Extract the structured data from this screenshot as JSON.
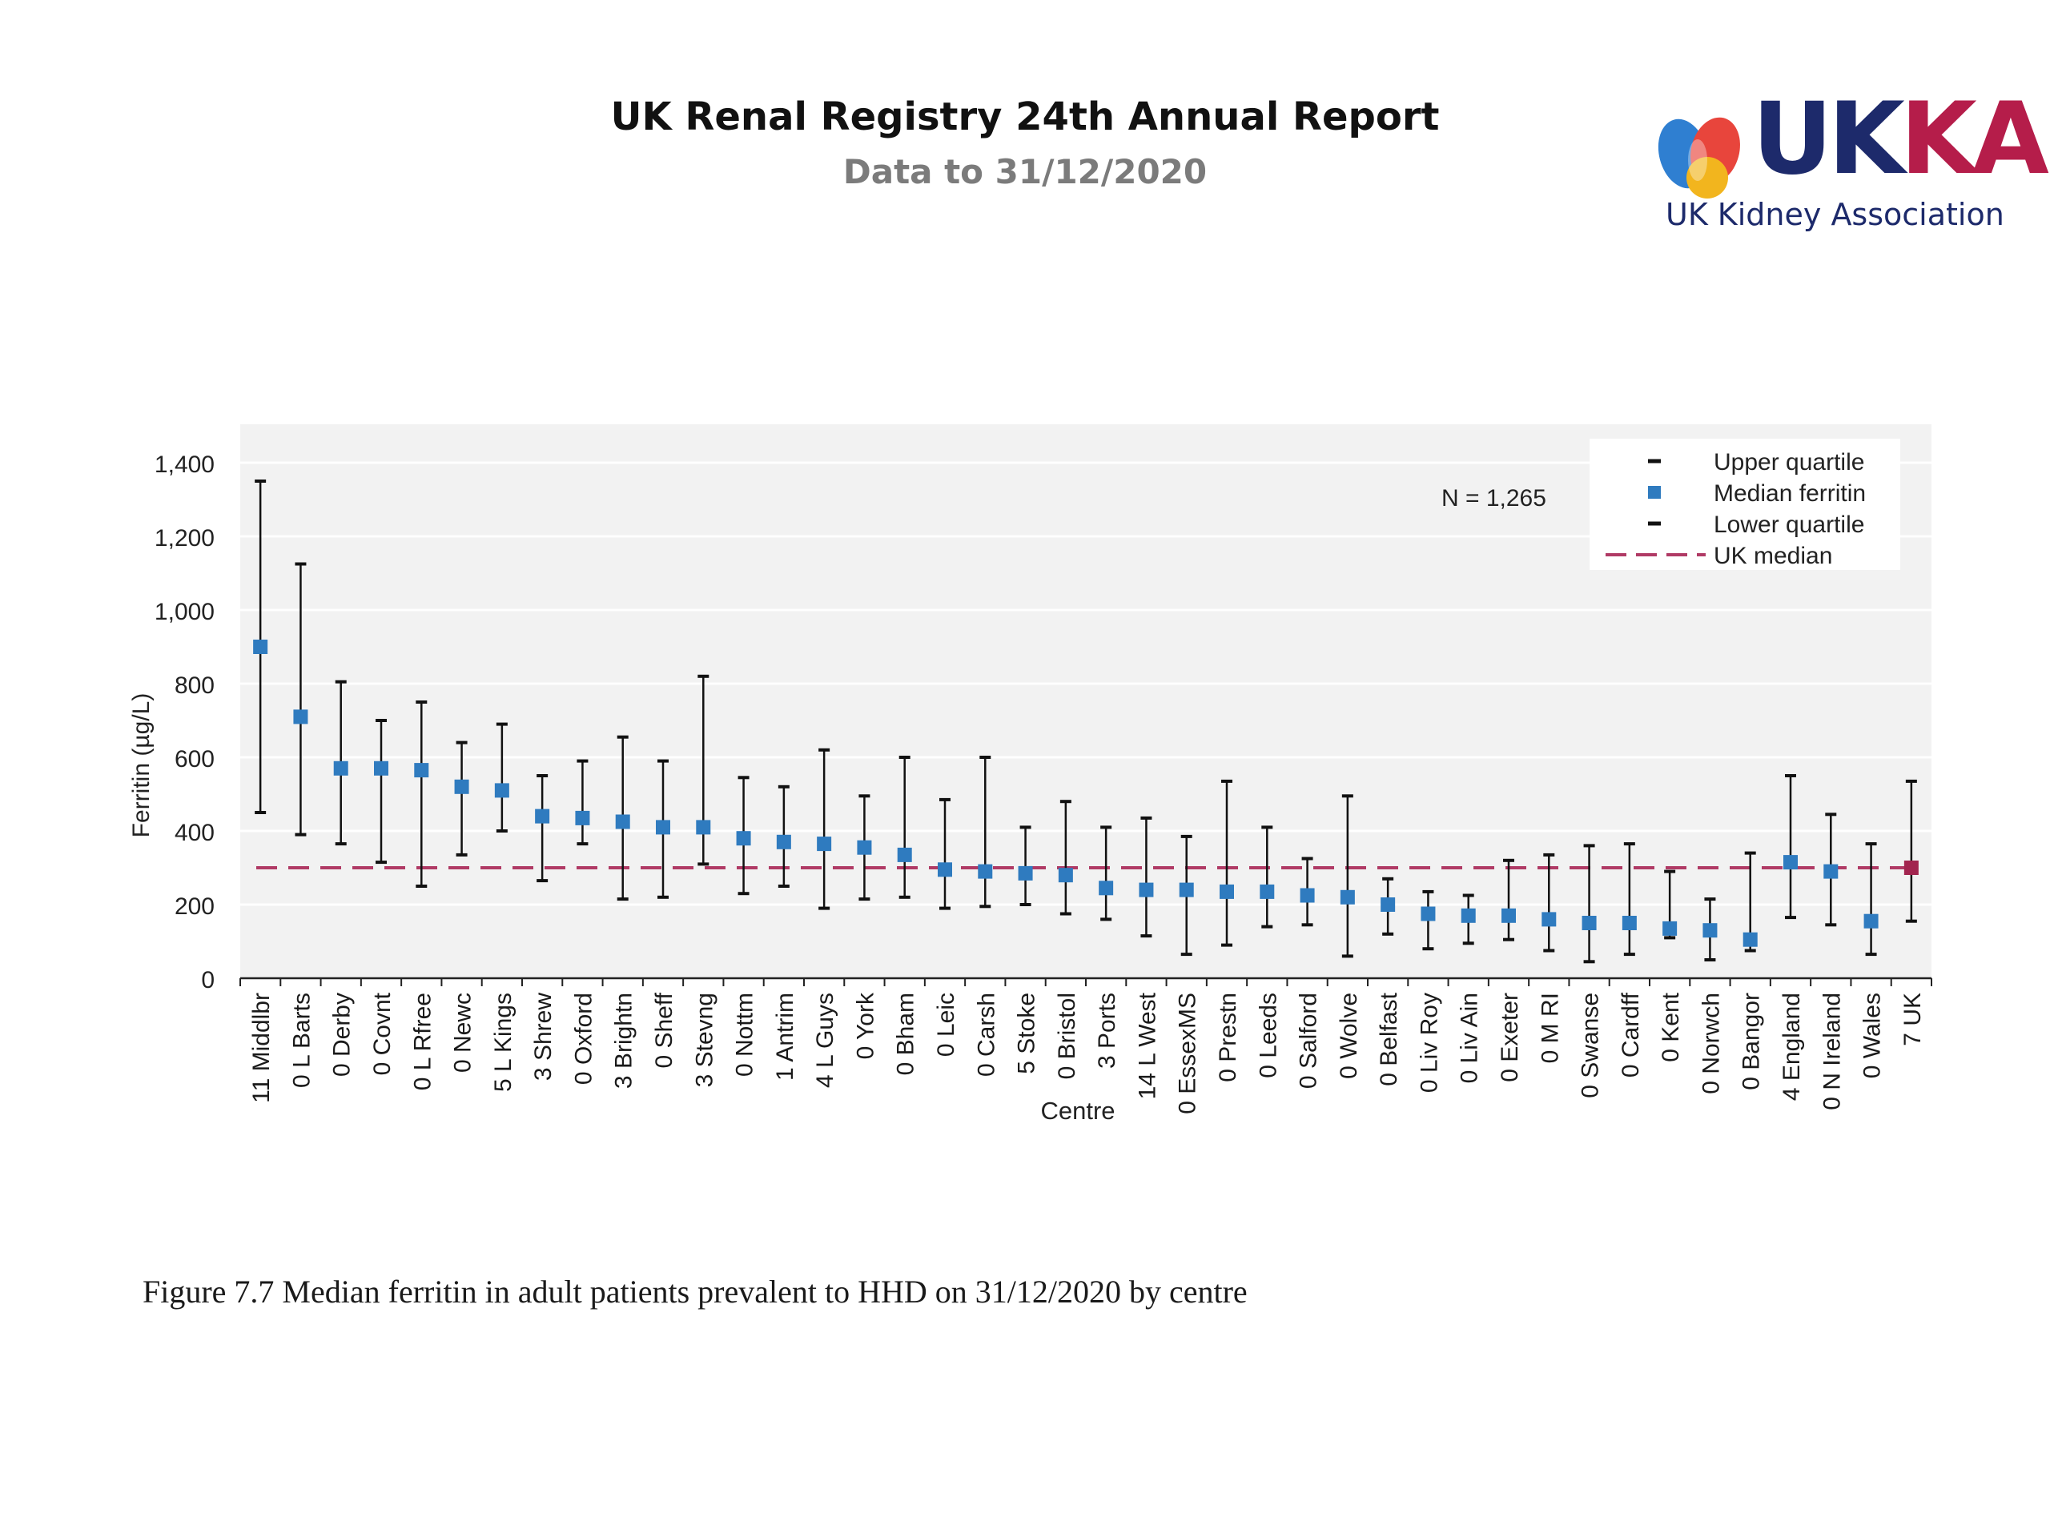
{
  "header": {
    "title": "UK Renal Registry 24th Annual Report",
    "subtitle": "Data to 31/12/2020"
  },
  "logo": {
    "name": "UKKA",
    "tagline": "UK Kidney Association",
    "colors": [
      "#2f7fd1",
      "#e8453c",
      "#f2b51e",
      "#1d2a6b",
      "#b51d4a"
    ]
  },
  "caption": "Figure 7.7 Median ferritin in adult patients prevalent to HHD on 31/12/2020 by centre",
  "chart_data": {
    "type": "scatter",
    "subtype": "median with interquartile error bars",
    "xlabel": "Centre",
    "ylabel": "Ferritin (µg/L)",
    "ylim": [
      0,
      1400
    ],
    "yticks": [
      0,
      200,
      400,
      600,
      800,
      1000,
      1200,
      1400
    ],
    "ytick_labels": [
      "0",
      "200",
      "400",
      "600",
      "800",
      "1,000",
      "1,200",
      "1,400"
    ],
    "annotation": "N = 1,265",
    "grid": true,
    "legend_position": "top-right",
    "legend": [
      "Upper quartile",
      "Median ferritin",
      "Lower quartile",
      "UK median"
    ],
    "uk_median": 300,
    "colors": {
      "median": "#2f7bbf",
      "uk_point": "#a2254f",
      "uk_median_line": "#b03a65",
      "whisker": "#111111",
      "plot_bg": "#f2f2f2"
    },
    "categories": [
      "11 Middlbr",
      "0 L Barts",
      "0 Derby",
      "0 Covnt",
      "0 L Rfree",
      "0 Newc",
      "5 L Kings",
      "3 Shrew",
      "0 Oxford",
      "3 Brightn",
      "0 Sheff",
      "3 Stevng",
      "0 Nottm",
      "1 Antrim",
      "4 L Guys",
      "0 York",
      "0 Bham",
      "0 Leic",
      "0 Carsh",
      "5 Stoke",
      "0 Bristol",
      "3 Ports",
      "14 L West",
      "0 EssexMS",
      "0 Prestn",
      "0 Leeds",
      "0 Salford",
      "0 Wolve",
      "0 Belfast",
      "0 Liv Roy",
      "0 Liv Ain",
      "0 Exeter",
      "0 M RI",
      "0 Swanse",
      "0 Cardff",
      "0 Kent",
      "0 Norwch",
      "0 Bangor",
      "4 England",
      "0 N Ireland",
      "0 Wales",
      "7 UK"
    ],
    "series": [
      {
        "name": "Upper quartile",
        "values": [
          1350,
          1125,
          805,
          700,
          750,
          640,
          690,
          550,
          590,
          655,
          590,
          820,
          545,
          520,
          620,
          495,
          600,
          485,
          600,
          410,
          480,
          410,
          435,
          385,
          535,
          410,
          325,
          495,
          270,
          235,
          225,
          320,
          335,
          360,
          365,
          290,
          215,
          340,
          550,
          445,
          365,
          535
        ]
      },
      {
        "name": "Median ferritin",
        "values": [
          900,
          710,
          570,
          570,
          565,
          520,
          510,
          440,
          435,
          425,
          410,
          410,
          380,
          370,
          365,
          355,
          335,
          295,
          290,
          285,
          280,
          245,
          240,
          240,
          235,
          235,
          225,
          220,
          200,
          175,
          170,
          170,
          160,
          150,
          150,
          135,
          130,
          105,
          315,
          290,
          155,
          300
        ]
      },
      {
        "name": "Lower quartile",
        "values": [
          450,
          390,
          365,
          315,
          250,
          335,
          400,
          265,
          365,
          215,
          220,
          310,
          230,
          250,
          190,
          215,
          220,
          190,
          195,
          200,
          175,
          160,
          115,
          65,
          90,
          140,
          145,
          60,
          120,
          80,
          95,
          105,
          75,
          45,
          65,
          110,
          50,
          75,
          165,
          145,
          65,
          155
        ]
      }
    ]
  }
}
